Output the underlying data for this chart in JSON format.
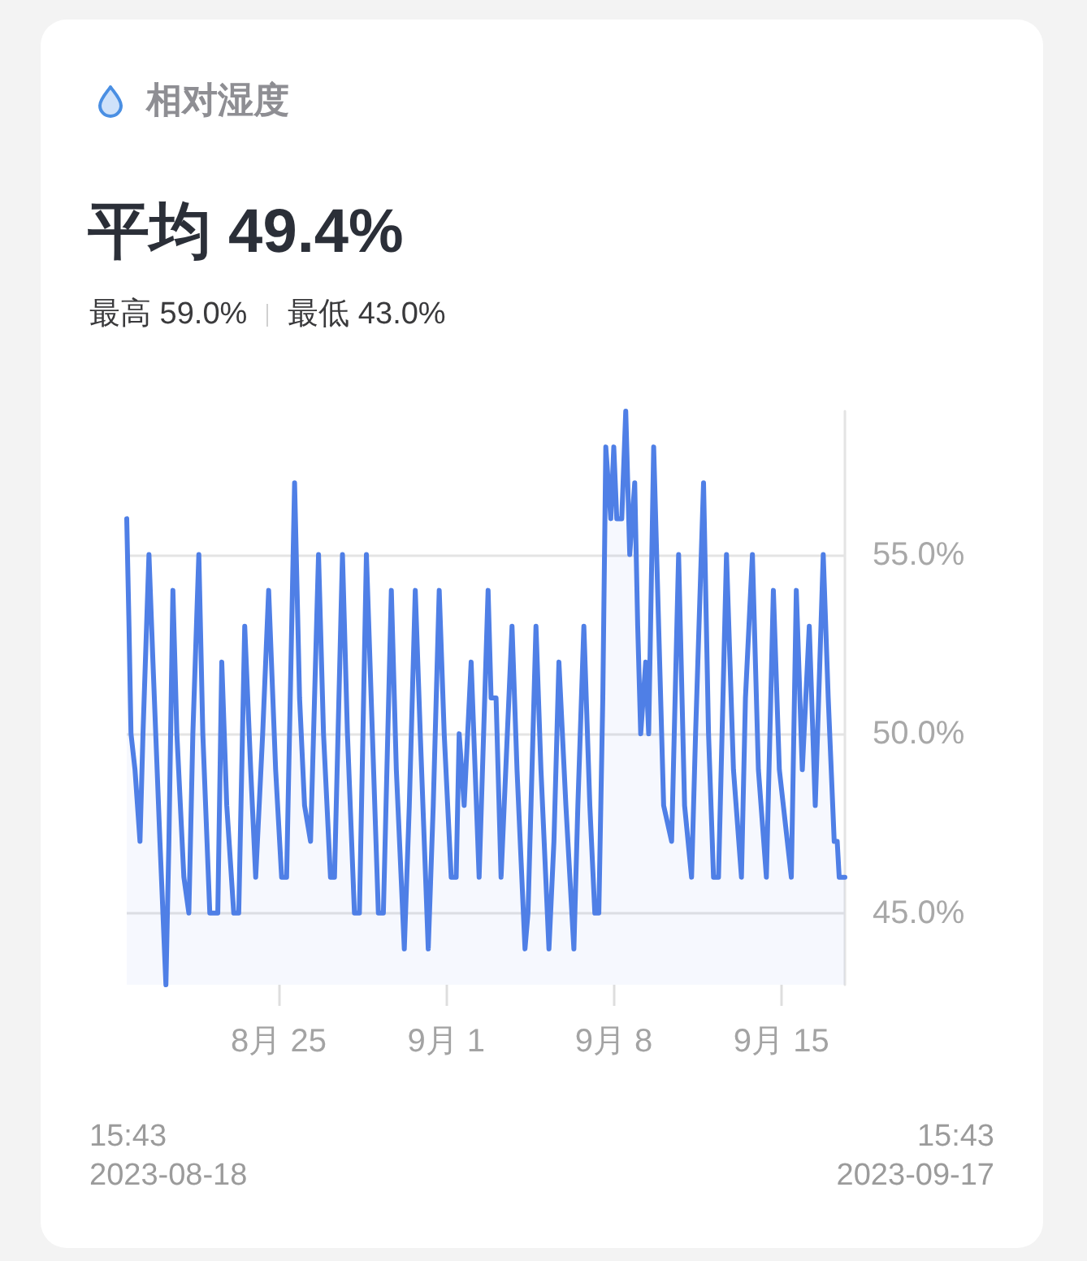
{
  "chart_data": {
    "type": "area",
    "title": "相对湿度",
    "subtitle": "平均 49.4%",
    "annotations": [
      "最高 59.0%",
      "最低 43.0%",
      "15:43\n2023-08-18",
      "15:43\n2023-09-17"
    ],
    "x": [
      "2023-08-18T15:43",
      "2023-08-18T18:00",
      "2023-08-18T20:00",
      "2023-08-19T00:00",
      "2023-08-19T05:00",
      "2023-08-19T08:00",
      "2023-08-19T14:00",
      "2023-08-19T18:00",
      "2023-08-20T01:00",
      "2023-08-20T07:00",
      "2023-08-20T10:00",
      "2023-08-20T14:00",
      "2023-08-20T18:00",
      "2023-08-21T01:00",
      "2023-08-21T06:00",
      "2023-08-21T10:00",
      "2023-08-21T16:00",
      "2023-08-21T20:00",
      "2023-08-22T03:00",
      "2023-08-22T11:00",
      "2023-08-22T15:00",
      "2023-08-22T20:00",
      "2023-08-23T03:00",
      "2023-08-23T08:00",
      "2023-08-23T14:00",
      "2023-08-23T20:00",
      "2023-08-24T01:00",
      "2023-08-24T08:00",
      "2023-08-24T14:00",
      "2023-08-24T21:00",
      "2023-08-25T03:00",
      "2023-08-25T08:00",
      "2023-08-25T16:00",
      "2023-08-25T21:00",
      "2023-08-26T02:00",
      "2023-08-26T08:00",
      "2023-08-26T16:00",
      "2023-08-26T21:00",
      "2023-08-27T04:00",
      "2023-08-27T08:00",
      "2023-08-27T16:00",
      "2023-08-27T21:00",
      "2023-08-28T04:00",
      "2023-08-28T09:00",
      "2023-08-28T16:00",
      "2023-08-28T22:00",
      "2023-08-29T04:00",
      "2023-08-29T09:00",
      "2023-08-29T17:00",
      "2023-08-29T22:00",
      "2023-08-30T06:00",
      "2023-08-30T11:00",
      "2023-08-30T17:00",
      "2023-08-30T22:00",
      "2023-08-31T06:00",
      "2023-08-31T11:00",
      "2023-08-31T17:00",
      "2023-08-31T22:00",
      "2023-09-01T05:00",
      "2023-09-01T10:00",
      "2023-09-01T13:00",
      "2023-09-01T18:00",
      "2023-09-02T01:00",
      "2023-09-02T05:00",
      "2023-09-02T09:00",
      "2023-09-02T18:00",
      "2023-09-02T21:00",
      "2023-09-03T02:00",
      "2023-09-03T07:00",
      "2023-09-03T18:00",
      "2023-09-03T23:00",
      "2023-09-04T07:00",
      "2023-09-04T10:00",
      "2023-09-04T18:00",
      "2023-09-04T23:00",
      "2023-09-05T07:00",
      "2023-09-05T12:00",
      "2023-09-05T17:00",
      "2023-09-06T00:00",
      "2023-09-06T08:00",
      "2023-09-06T12:00",
      "2023-09-06T18:00",
      "2023-09-07T00:00",
      "2023-09-07T05:00",
      "2023-09-07T09:00",
      "2023-09-07T13:00",
      "2023-09-07T16:00",
      "2023-09-07T21:00",
      "2023-09-08T00:00",
      "2023-09-08T03:00",
      "2023-09-08T08:00",
      "2023-09-08T12:00",
      "2023-09-08T16:00",
      "2023-09-08T21:00",
      "2023-09-09T00:00",
      "2023-09-09T03:00",
      "2023-09-09T08:00",
      "2023-09-09T11:00",
      "2023-09-09T16:00",
      "2023-09-09T21:00",
      "2023-09-10T02:00",
      "2023-09-10T10:00",
      "2023-09-10T17:00",
      "2023-09-10T23:00",
      "2023-09-11T06:00",
      "2023-09-11T10:00",
      "2023-09-11T18:00",
      "2023-09-11T23:00",
      "2023-09-12T04:00",
      "2023-09-12T09:00",
      "2023-09-12T17:00",
      "2023-09-13T00:00",
      "2023-09-13T08:00",
      "2023-09-13T12:00",
      "2023-09-13T19:00",
      "2023-09-14T01:00",
      "2023-09-14T09:00",
      "2023-09-14T16:00",
      "2023-09-14T22:00",
      "2023-09-15T10:00",
      "2023-09-15T15:00",
      "2023-09-15T21:00",
      "2023-09-16T04:00",
      "2023-09-16T10:00",
      "2023-09-16T18:00",
      "2023-09-16T23:00",
      "2023-09-17T05:00",
      "2023-09-17T08:00",
      "2023-09-17T10:00",
      "2023-09-17T15:43"
    ],
    "series": [
      {
        "color": "#4f7fe6",
        "values": [
          56,
          53,
          50,
          49,
          47,
          50,
          55,
          52,
          47,
          43,
          47,
          54,
          50,
          46,
          45,
          50,
          55,
          50,
          45,
          45,
          52,
          48,
          45,
          45,
          53,
          49,
          46,
          50,
          54,
          49,
          46,
          46,
          57,
          51,
          48,
          47,
          55,
          50,
          46,
          46,
          55,
          50,
          45,
          45,
          55,
          50,
          45,
          45,
          54,
          49,
          44,
          48,
          54,
          50,
          44,
          48,
          54,
          50,
          46,
          46,
          50,
          48,
          52,
          49,
          46,
          54,
          51,
          51,
          46,
          53,
          49,
          44,
          45,
          53,
          49,
          44,
          47,
          52,
          48,
          44,
          48,
          53,
          48,
          45,
          45,
          51,
          58,
          56,
          58,
          56,
          56,
          59,
          55,
          57,
          53,
          50,
          52,
          50,
          58,
          53,
          48,
          47,
          55,
          48,
          46,
          50,
          57,
          50,
          46,
          46,
          55,
          49,
          46,
          51,
          55,
          49,
          46,
          54,
          49,
          46,
          54,
          49,
          53,
          48,
          55,
          51,
          47,
          47,
          46,
          46
        ]
      }
    ],
    "xlim": [
      "2023-08-18T15:43",
      "2023-09-17T15:43"
    ],
    "xticks": [
      {
        "value": "2023-08-25",
        "label": "8月 25"
      },
      {
        "value": "2023-09-01",
        "label": "9月 1"
      },
      {
        "value": "2023-09-08",
        "label": "9月 8"
      },
      {
        "value": "2023-09-15",
        "label": "9月 15"
      }
    ],
    "ylim": [
      43,
      59
    ],
    "yticks": [
      {
        "value": 45,
        "label": "45.0%"
      },
      {
        "value": 50,
        "label": "50.0%"
      },
      {
        "value": 55,
        "label": "55.0%"
      }
    ],
    "grid": "y",
    "marker": "none"
  }
}
